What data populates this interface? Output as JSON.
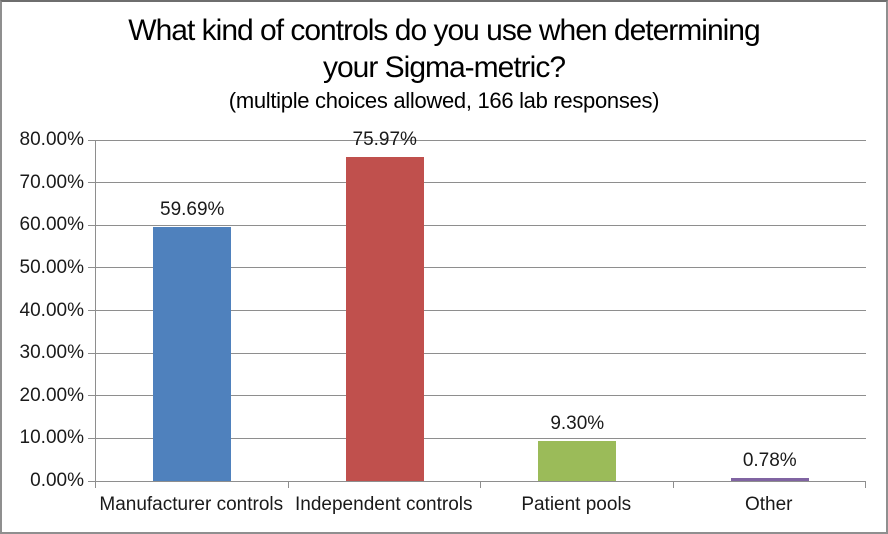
{
  "window": {
    "background_color": "#FFFFFF",
    "border_color": "#8F8F8F"
  },
  "chart_data": {
    "type": "bar",
    "title_line1": "What kind of controls do you use when determining",
    "title_line2": "your Sigma-metric?",
    "subtitle": "(multiple choices allowed, 166 lab responses)",
    "categories": [
      "Manufacturer controls",
      "Independent controls",
      "Patient pools",
      "Other"
    ],
    "values": [
      59.69,
      75.97,
      9.3,
      0.78
    ],
    "data_labels": [
      "59.69%",
      "75.97%",
      "9.30%",
      "0.78%"
    ],
    "bar_colors": [
      "#4F81BD",
      "#C0504D",
      "#9BBB59",
      "#8064A2"
    ],
    "xlabel": "",
    "ylabel": "",
    "ylim": [
      0,
      80
    ],
    "ytick_step": 10,
    "ytick_labels": [
      "0.00%",
      "10.00%",
      "20.00%",
      "30.00%",
      "40.00%",
      "50.00%",
      "60.00%",
      "70.00%",
      "80.00%"
    ],
    "grid": true,
    "gridline_color": "#8E8E8E",
    "axis_color": "#8E8E8E",
    "legend_position": "none"
  }
}
